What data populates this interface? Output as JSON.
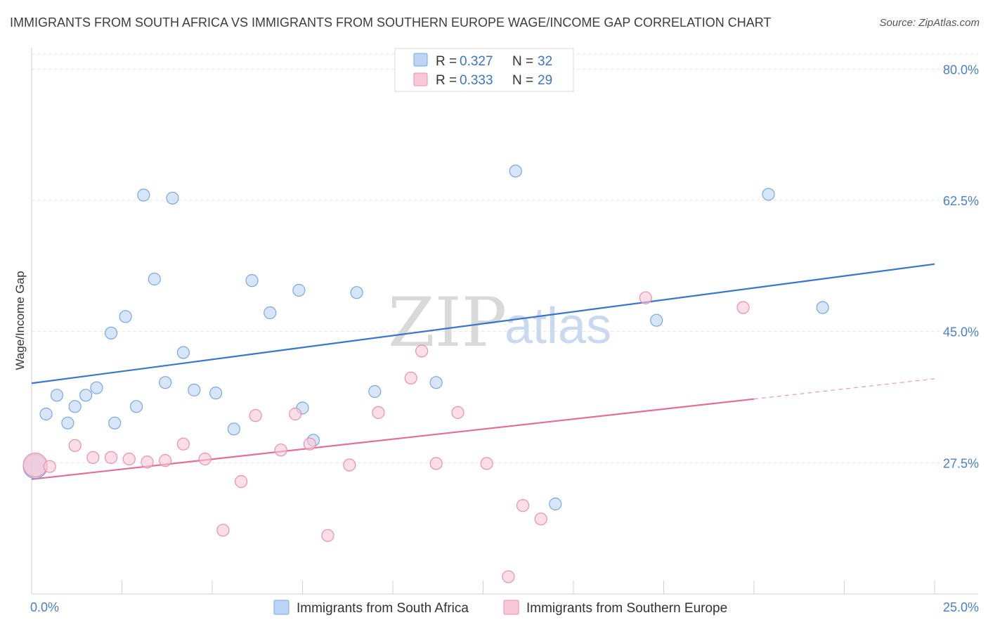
{
  "title": "IMMIGRANTS FROM SOUTH AFRICA VS IMMIGRANTS FROM SOUTHERN EUROPE WAGE/INCOME GAP CORRELATION CHART",
  "source": "Source: ZipAtlas.com",
  "watermark": {
    "zip": "ZIP",
    "atlas": "atlas"
  },
  "colors": {
    "blue_fill": "#bcd4f5",
    "blue_stroke": "#7aa6e0",
    "blue_line": "#3a75cc",
    "pink_fill": "#f8c8d6",
    "pink_stroke": "#e890ab",
    "pink_line": "#e36e97",
    "grid": "#e2e2e2",
    "tick_text": "#4a7fc8"
  },
  "legend": {
    "rows": [
      {
        "r_label": "R = ",
        "r_value": "0.327",
        "n_label": "N = ",
        "n_value": "32"
      },
      {
        "r_label": "R = ",
        "r_value": "0.333",
        "n_label": "N = ",
        "n_value": "29"
      }
    ]
  },
  "chart_data": {
    "type": "scatter",
    "xlabel": "",
    "ylabel": "Wage/Income Gap",
    "xlim": [
      0,
      25
    ],
    "ylim": [
      10,
      82
    ],
    "x_ticks": [
      "0.0%",
      "25.0%"
    ],
    "y_ticks": [
      {
        "value": 27.5,
        "label": "27.5%"
      },
      {
        "value": 45.0,
        "label": "45.0%"
      },
      {
        "value": 62.5,
        "label": "62.5%"
      },
      {
        "value": 80.0,
        "label": "80.0%"
      }
    ],
    "grid": true,
    "legend_position": "top-center",
    "series": [
      {
        "name": "Immigrants from South Africa",
        "color": "blue",
        "points": [
          [
            0.1,
            27.0,
            1
          ],
          [
            0.4,
            34.0,
            0
          ],
          [
            0.7,
            36.5,
            0
          ],
          [
            1.0,
            32.8,
            0
          ],
          [
            1.2,
            35.0,
            0
          ],
          [
            1.5,
            36.5,
            0
          ],
          [
            1.8,
            37.5,
            0
          ],
          [
            2.2,
            44.8,
            0
          ],
          [
            2.3,
            32.8,
            0
          ],
          [
            2.6,
            47.0,
            0
          ],
          [
            2.9,
            35.0,
            0
          ],
          [
            3.1,
            63.2,
            0
          ],
          [
            3.4,
            52.0,
            0
          ],
          [
            3.7,
            38.2,
            0
          ],
          [
            3.9,
            62.8,
            0
          ],
          [
            4.2,
            42.2,
            0
          ],
          [
            4.5,
            37.2,
            0
          ],
          [
            5.1,
            36.8,
            0
          ],
          [
            5.6,
            32.0,
            0
          ],
          [
            6.1,
            51.8,
            0
          ],
          [
            6.6,
            47.5,
            0
          ],
          [
            7.4,
            50.5,
            0
          ],
          [
            7.5,
            34.8,
            0
          ],
          [
            7.8,
            30.5,
            0
          ],
          [
            9.0,
            50.2,
            0
          ],
          [
            9.5,
            37.0,
            0
          ],
          [
            11.2,
            38.2,
            0
          ],
          [
            13.4,
            66.4,
            0
          ],
          [
            14.5,
            22.0,
            0
          ],
          [
            17.3,
            46.5,
            0
          ],
          [
            20.4,
            63.3,
            0
          ],
          [
            21.9,
            48.2,
            0
          ]
        ],
        "trend": {
          "x": [
            0,
            25
          ],
          "y": [
            38.1,
            54.0
          ]
        }
      },
      {
        "name": "Immigrants from Southern Europe",
        "color": "pink",
        "points": [
          [
            0.1,
            27.2,
            1
          ],
          [
            0.5,
            27.0,
            0
          ],
          [
            1.2,
            29.8,
            0
          ],
          [
            1.7,
            28.2,
            0
          ],
          [
            2.2,
            28.2,
            0
          ],
          [
            2.7,
            28.0,
            0
          ],
          [
            3.2,
            27.6,
            0
          ],
          [
            3.7,
            27.8,
            0
          ],
          [
            4.2,
            30.0,
            0
          ],
          [
            4.8,
            28.0,
            0
          ],
          [
            5.3,
            18.5,
            0
          ],
          [
            5.8,
            25.0,
            0
          ],
          [
            6.2,
            33.8,
            0
          ],
          [
            6.9,
            29.2,
            0
          ],
          [
            7.3,
            34.0,
            0
          ],
          [
            7.7,
            30.0,
            0
          ],
          [
            8.2,
            17.8,
            0
          ],
          [
            8.8,
            27.2,
            0
          ],
          [
            9.6,
            34.2,
            0
          ],
          [
            10.5,
            38.8,
            0
          ],
          [
            10.8,
            42.4,
            0
          ],
          [
            11.2,
            27.4,
            0
          ],
          [
            11.8,
            34.2,
            0
          ],
          [
            12.6,
            27.4,
            0
          ],
          [
            13.2,
            12.3,
            0
          ],
          [
            13.6,
            21.8,
            0
          ],
          [
            14.1,
            20.0,
            0
          ],
          [
            17.0,
            49.5,
            0
          ],
          [
            19.7,
            48.2,
            0
          ]
        ],
        "trend": {
          "x": [
            0,
            20
          ],
          "y": [
            25.3,
            36.0
          ]
        },
        "trend_dashed": {
          "x": [
            20,
            25
          ],
          "y": [
            36.0,
            38.7
          ]
        }
      }
    ]
  }
}
